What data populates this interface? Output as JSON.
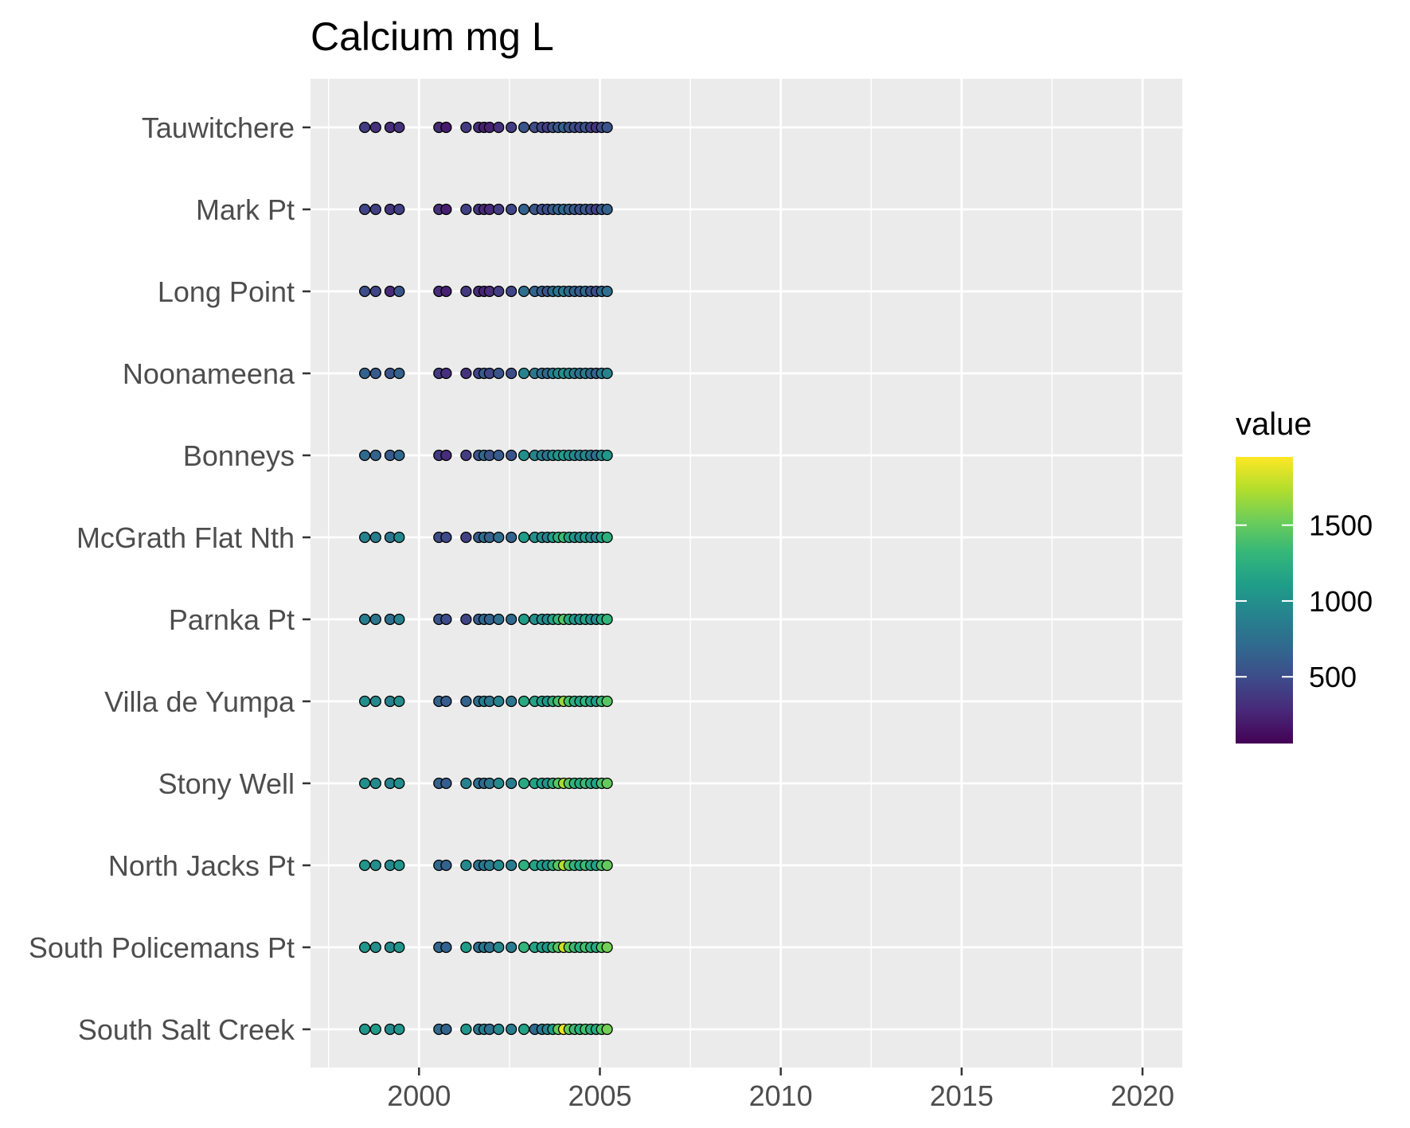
{
  "chart_data": {
    "type": "scatter",
    "title": "Calcium mg L",
    "xlabel": "",
    "ylabel": "",
    "x_ticks": [
      2000,
      2005,
      2010,
      2015,
      2020
    ],
    "xlim": [
      1997.0,
      2021.1
    ],
    "x_tick_labels": [
      "2000",
      "2005",
      "2010",
      "2015",
      "2020"
    ],
    "grid": true,
    "legend": {
      "title": "value",
      "position": "right",
      "type": "colorbar",
      "range": [
        60,
        1950
      ],
      "ticks": [
        500,
        1000,
        1500
      ],
      "tick_labels": [
        "500",
        "1000",
        "1500"
      ],
      "palette": "viridis",
      "colors": [
        "#440154",
        "#482878",
        "#3E4A89",
        "#31688E",
        "#26828E",
        "#1F9E89",
        "#35B779",
        "#6DCD59",
        "#B4DE2C",
        "#FDE725"
      ]
    },
    "sites": [
      "Tauwitchere",
      "Mark Pt",
      "Long Point",
      "Noonameena",
      "Bonneys",
      "McGrath Flat Nth",
      "Parnka Pt",
      "Villa de Yumpa",
      "Stony Well",
      "North Jacks Pt",
      "South Policemans Pt",
      "South Salt Creek"
    ],
    "x": [
      1998.5,
      1998.8,
      1999.2,
      1999.45,
      2000.55,
      2000.75,
      2001.3,
      2001.65,
      2001.8,
      2001.95,
      2002.2,
      2002.55,
      2002.9,
      2003.2,
      2003.4,
      2003.55,
      2003.7,
      2003.85,
      2004.0,
      2004.15,
      2004.3,
      2004.45,
      2004.6,
      2004.75,
      2004.9,
      2005.05,
      2005.2
    ],
    "series": [
      {
        "name": "Tauwitchere",
        "values": [
          380,
          330,
          300,
          330,
          280,
          200,
          380,
          300,
          220,
          230,
          330,
          400,
          550,
          500,
          450,
          400,
          520,
          580,
          650,
          550,
          500,
          450,
          550,
          400,
          350,
          500,
          550
        ]
      },
      {
        "name": "Mark Pt",
        "values": [
          450,
          420,
          350,
          420,
          320,
          220,
          420,
          350,
          280,
          280,
          400,
          450,
          650,
          580,
          520,
          500,
          600,
          650,
          700,
          620,
          600,
          520,
          600,
          480,
          420,
          600,
          650
        ]
      },
      {
        "name": "Long Point",
        "values": [
          500,
          450,
          280,
          550,
          300,
          230,
          380,
          300,
          250,
          300,
          400,
          450,
          750,
          650,
          600,
          550,
          700,
          800,
          850,
          700,
          650,
          600,
          700,
          550,
          500,
          700,
          750
        ]
      },
      {
        "name": "Noonameena",
        "values": [
          650,
          600,
          550,
          650,
          380,
          320,
          330,
          450,
          600,
          450,
          550,
          500,
          900,
          800,
          750,
          700,
          850,
          950,
          1000,
          900,
          850,
          750,
          850,
          700,
          650,
          850,
          900
        ]
      },
      {
        "name": "Bonneys",
        "values": [
          700,
          650,
          600,
          700,
          380,
          300,
          400,
          550,
          700,
          550,
          600,
          550,
          1000,
          900,
          850,
          800,
          950,
          1050,
          1100,
          1000,
          950,
          850,
          950,
          800,
          750,
          950,
          1050
        ]
      },
      {
        "name": "McGrath Flat Nth",
        "values": [
          900,
          850,
          800,
          950,
          500,
          480,
          420,
          600,
          750,
          650,
          750,
          650,
          1100,
          1000,
          950,
          900,
          1100,
          1250,
          1350,
          1150,
          1050,
          950,
          1100,
          950,
          900,
          1150,
          1250
        ]
      },
      {
        "name": "Parnka Pt",
        "values": [
          850,
          800,
          750,
          900,
          550,
          500,
          450,
          600,
          700,
          650,
          750,
          700,
          1100,
          1000,
          1000,
          950,
          1150,
          1300,
          1450,
          1200,
          1100,
          1000,
          1150,
          1000,
          950,
          1200,
          1300
        ]
      },
      {
        "name": "Villa de Yumpa",
        "values": [
          1000,
          950,
          900,
          1000,
          650,
          600,
          650,
          750,
          850,
          800,
          900,
          800,
          1200,
          1150,
          1100,
          1050,
          1250,
          1400,
          1650,
          1400,
          1250,
          1150,
          1300,
          1150,
          1100,
          1350,
          1450
        ]
      },
      {
        "name": "Stony Well",
        "values": [
          1000,
          950,
          900,
          1000,
          650,
          600,
          900,
          750,
          700,
          800,
          950,
          850,
          1200,
          1150,
          1100,
          1050,
          1250,
          1450,
          1700,
          1450,
          1300,
          1200,
          1350,
          1200,
          1150,
          1400,
          1500
        ]
      },
      {
        "name": "North Jacks Pt",
        "values": [
          1050,
          1000,
          950,
          1050,
          700,
          650,
          950,
          750,
          800,
          850,
          950,
          850,
          1250,
          1150,
          1100,
          1050,
          1250,
          1450,
          1750,
          1450,
          1300,
          1200,
          1350,
          1200,
          1150,
          1400,
          1500
        ]
      },
      {
        "name": "South Policemans Pt",
        "values": [
          1050,
          1000,
          950,
          1050,
          700,
          650,
          1100,
          750,
          800,
          750,
          950,
          850,
          1300,
          1150,
          1100,
          1050,
          1300,
          1450,
          1800,
          1500,
          1350,
          1250,
          1400,
          1250,
          1200,
          1450,
          1550
        ]
      },
      {
        "name": "South Salt Creek",
        "values": [
          1050,
          1100,
          950,
          1050,
          700,
          650,
          1050,
          800,
          850,
          750,
          950,
          850,
          1150,
          700,
          800,
          900,
          1100,
          1500,
          1900,
          1500,
          1350,
          1250,
          1400,
          1250,
          1200,
          1450,
          1550
        ]
      }
    ]
  }
}
